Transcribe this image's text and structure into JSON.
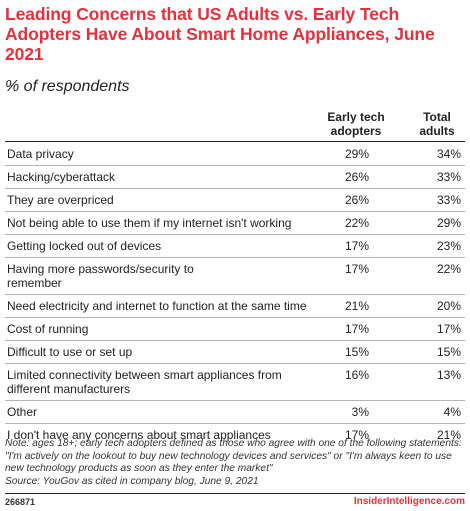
{
  "header": {
    "title": "Leading Concerns that US Adults vs. Early Tech Adopters Have About Smart Home Appliances, June 2021",
    "subtitle": "% of respondents"
  },
  "columns": {
    "early_tech_adopters": "Early tech adopters",
    "total_adults": "Total adults"
  },
  "rows": [
    {
      "label": "Data privacy",
      "early": "29%",
      "total": "34%"
    },
    {
      "label": "Hacking/cyberattack",
      "early": "26%",
      "total": "33%"
    },
    {
      "label": "They are overpriced",
      "early": "26%",
      "total": "33%"
    },
    {
      "label": "Not being able to use them if my internet isn't working",
      "early": "22%",
      "total": "29%"
    },
    {
      "label": "Getting locked out of devices",
      "early": "17%",
      "total": "23%"
    },
    {
      "label": "Having more passwords/security to remember",
      "early": "17%",
      "total": "22%"
    },
    {
      "label": "Need electricity and internet to function at the same time",
      "early": "21%",
      "total": "20%"
    },
    {
      "label": "Cost of running",
      "early": "17%",
      "total": "17%"
    },
    {
      "label": "Difficult to use or set up",
      "early": "15%",
      "total": "15%"
    },
    {
      "label": "Limited connectivity between smart appliances from different manufacturers",
      "early": "16%",
      "total": "13%"
    },
    {
      "label": "Other",
      "early": "3%",
      "total": "4%"
    },
    {
      "label": "I don't have any concerns about smart appliances",
      "early": "17%",
      "total": "21%"
    }
  ],
  "footer": {
    "note": "Note: ages 18+; early tech adopters defined as those who agree with one of the following statements: \"I'm actively on the lookout to buy new technology devices and services\" or \"I'm always keen to use new technology products as soon as they enter the market\"",
    "source": "Source: YouGov as cited in company blog, June 9, 2021",
    "chart_id": "266871",
    "brand": "InsiderIntelligence.com"
  },
  "colors": {
    "title": "#e8303c",
    "brand": "#e8303c",
    "text": "#222222",
    "rule": "#b5b5b5"
  }
}
